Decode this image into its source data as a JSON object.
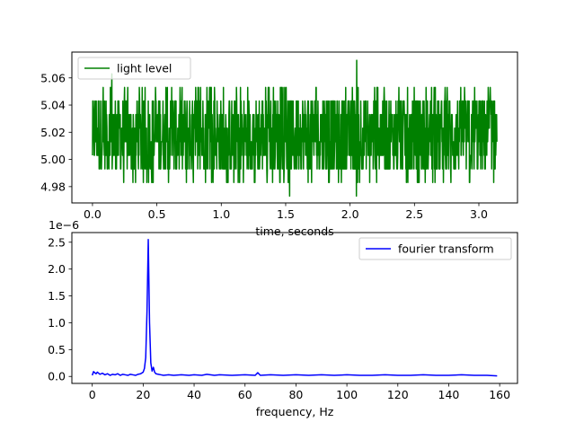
{
  "chart_data": [
    {
      "type": "line",
      "title": "",
      "xlabel": "time, seconds",
      "ylabel": "",
      "xlim": [
        -0.16,
        3.3
      ],
      "ylim": [
        4.968,
        5.079
      ],
      "xticks": [
        "0.0",
        "0.5",
        "1.0",
        "1.5",
        "2.0",
        "2.5",
        "3.0"
      ],
      "yticks": [
        "4.98",
        "5.00",
        "5.02",
        "5.04",
        "5.06"
      ],
      "legend_position": "upper-left",
      "color": "#008000",
      "series": [
        {
          "name": "light level",
          "description_levels": [
            4.973,
            4.983,
            4.993,
            5.003,
            5.013,
            5.023,
            5.033,
            5.043,
            5.053,
            5.063,
            5.073
          ],
          "x_range": [
            0.0,
            3.14
          ],
          "base_band": [
            4.993,
            5.043
          ],
          "spikes": [
            {
              "x": 0.15,
              "y": 5.063
            },
            {
              "x": 0.47,
              "y": 4.983
            },
            {
              "x": 0.73,
              "y": 4.983
            },
            {
              "x": 1.26,
              "y": 4.983
            },
            {
              "x": 1.53,
              "y": 4.973
            },
            {
              "x": 2.05,
              "y": 5.073
            },
            {
              "x": 2.05,
              "y": 4.973
            },
            {
              "x": 2.78,
              "y": 4.983
            },
            {
              "x": 2.93,
              "y": 4.983
            }
          ]
        }
      ]
    },
    {
      "type": "line",
      "title": "",
      "xlabel": "frequency, Hz",
      "ylabel": "",
      "offset_text": "1e−6",
      "xlim": [
        -8,
        167
      ],
      "ylim": [
        -0.13,
        2.68
      ],
      "xticks": [
        "0",
        "20",
        "40",
        "60",
        "80",
        "100",
        "120",
        "140",
        "160"
      ],
      "yticks": [
        "0.0",
        "0.5",
        "1.0",
        "1.5",
        "2.0",
        "2.5"
      ],
      "legend_position": "upper-right",
      "color": "#0000ff",
      "series": [
        {
          "name": "fourier transform",
          "points": [
            [
              0.0,
              0.02
            ],
            [
              0.5,
              0.09
            ],
            [
              1,
              0.07
            ],
            [
              1.5,
              0.05
            ],
            [
              2,
              0.08
            ],
            [
              3,
              0.04
            ],
            [
              4,
              0.06
            ],
            [
              5,
              0.03
            ],
            [
              6,
              0.05
            ],
            [
              7,
              0.02
            ],
            [
              8,
              0.04
            ],
            [
              9,
              0.03
            ],
            [
              10,
              0.05
            ],
            [
              11,
              0.02
            ],
            [
              12,
              0.04
            ],
            [
              13,
              0.03
            ],
            [
              14,
              0.02
            ],
            [
              15,
              0.04
            ],
            [
              16,
              0.03
            ],
            [
              17,
              0.02
            ],
            [
              18,
              0.04
            ],
            [
              19,
              0.05
            ],
            [
              20,
              0.08
            ],
            [
              20.5,
              0.15
            ],
            [
              21,
              0.35
            ],
            [
              21.5,
              1.2
            ],
            [
              22,
              2.55
            ],
            [
              22.5,
              1.0
            ],
            [
              23,
              0.25
            ],
            [
              23.5,
              0.1
            ],
            [
              24,
              0.17
            ],
            [
              24.5,
              0.08
            ],
            [
              25,
              0.05
            ],
            [
              26,
              0.04
            ],
            [
              27,
              0.03
            ],
            [
              28,
              0.02
            ],
            [
              30,
              0.03
            ],
            [
              32,
              0.02
            ],
            [
              35,
              0.03
            ],
            [
              38,
              0.02
            ],
            [
              40,
              0.03
            ],
            [
              43,
              0.02
            ],
            [
              45,
              0.04
            ],
            [
              48,
              0.02
            ],
            [
              50,
              0.03
            ],
            [
              55,
              0.02
            ],
            [
              60,
              0.03
            ],
            [
              64,
              0.02
            ],
            [
              65,
              0.07
            ],
            [
              66,
              0.02
            ],
            [
              70,
              0.03
            ],
            [
              75,
              0.02
            ],
            [
              80,
              0.03
            ],
            [
              85,
              0.02
            ],
            [
              90,
              0.03
            ],
            [
              95,
              0.02
            ],
            [
              100,
              0.03
            ],
            [
              105,
              0.02
            ],
            [
              110,
              0.02
            ],
            [
              115,
              0.03
            ],
            [
              120,
              0.02
            ],
            [
              125,
              0.02
            ],
            [
              130,
              0.03
            ],
            [
              135,
              0.02
            ],
            [
              140,
              0.02
            ],
            [
              145,
              0.03
            ],
            [
              150,
              0.02
            ],
            [
              155,
              0.02
            ],
            [
              159,
              0.01
            ]
          ]
        }
      ]
    }
  ]
}
